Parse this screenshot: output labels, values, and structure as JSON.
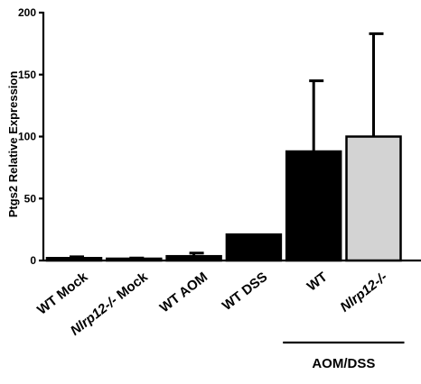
{
  "chart_data": {
    "type": "bar",
    "ylabel": "Ptgs2 Relative Expression",
    "ylim": [
      0,
      200
    ],
    "yticks": [
      "0",
      "50",
      "100",
      "150",
      "200"
    ],
    "categories": [
      {
        "label": "WT Mock",
        "value": 2,
        "error": 1,
        "fill": "#000000",
        "italic_part": ""
      },
      {
        "label": "Nlrp12-/- Mock",
        "value": 1.5,
        "error": 0.5,
        "fill": "#000000",
        "italic_part": "Nlrp12-/-"
      },
      {
        "label": "WT AOM",
        "value": 3.5,
        "error": 2.5,
        "fill": "#000000",
        "italic_part": ""
      },
      {
        "label": "WT DSS",
        "value": 21,
        "error": 0,
        "fill": "#000000",
        "italic_part": ""
      },
      {
        "label": "WT",
        "value": 88,
        "error": 57,
        "fill": "#000000",
        "italic_part": ""
      },
      {
        "label": "Nlrp12-/-",
        "value": 100,
        "error": 83,
        "fill": "#d3d3d3",
        "italic_part": "Nlrp12-/-"
      }
    ],
    "group": {
      "label": "AOM/DSS",
      "members": [
        4,
        5
      ]
    },
    "grid": false,
    "legend": "none"
  }
}
